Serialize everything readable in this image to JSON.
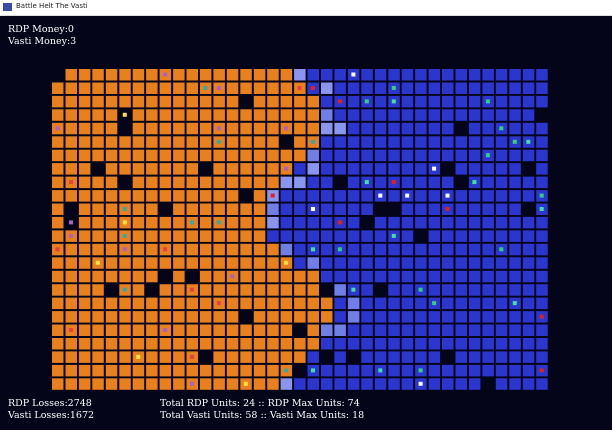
{
  "window": {
    "title": "Battle Helt The Vasti"
  },
  "hud": {
    "rdp_money": "RDP Money:0",
    "vasti_money": "Vasti Money:3",
    "rdp_losses": "RDP Losses:2748",
    "vasti_losses": "Vasti Losses:1672",
    "rdp_units": "Total RDP Units: 24 :: RDP Max Units: 74",
    "vasti_units": "Total Vasti Units: 58 :: Vasti Max Units: 18"
  }
}
